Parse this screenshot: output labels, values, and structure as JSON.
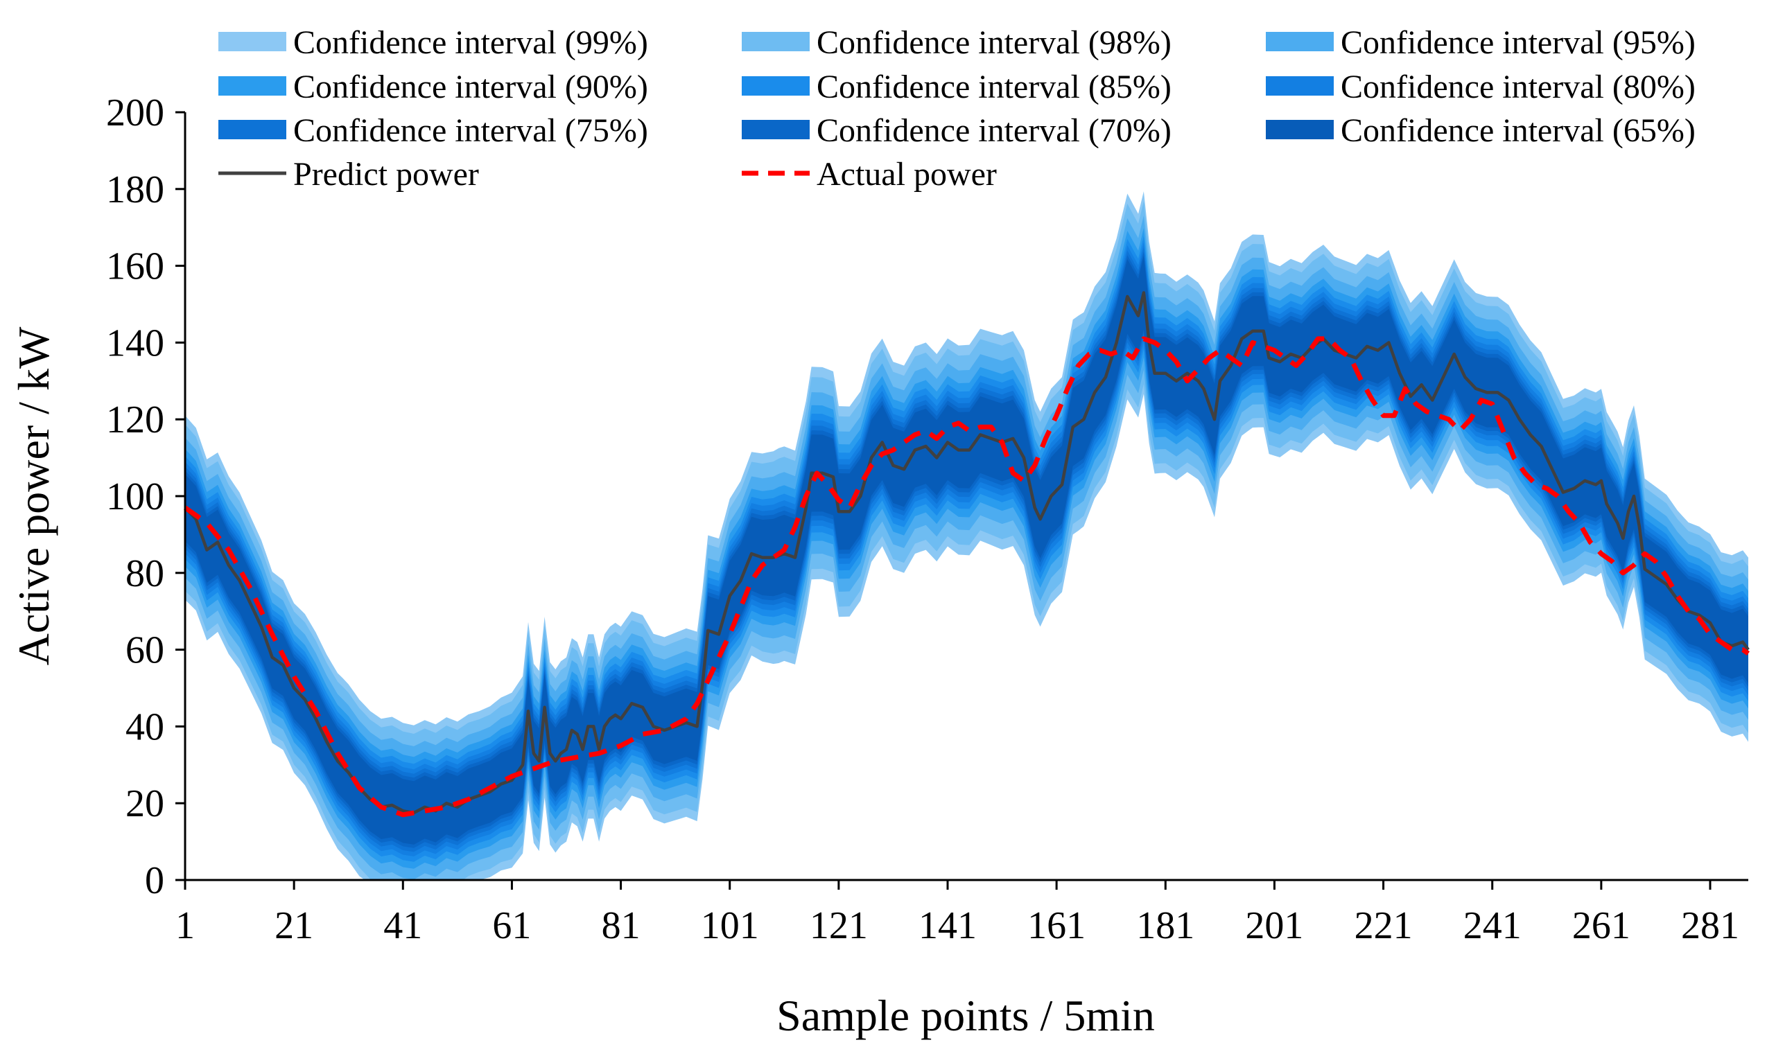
{
  "chart_data": {
    "type": "area",
    "title": "",
    "xlabel": "Sample points / 5min",
    "ylabel": "Active power / kW",
    "xlim": [
      1,
      288
    ],
    "ylim": [
      0,
      200
    ],
    "x_ticks": [
      1,
      21,
      41,
      61,
      81,
      101,
      121,
      141,
      161,
      181,
      201,
      221,
      241,
      261,
      281
    ],
    "x_tick_labels": [
      "1",
      "21",
      "41",
      "61",
      "81",
      "101",
      "121",
      "141",
      "161",
      "181",
      "201",
      "221",
      "241",
      "261",
      "281"
    ],
    "y_ticks": [
      0,
      20,
      40,
      60,
      80,
      100,
      120,
      140,
      160,
      180,
      200
    ],
    "y_tick_labels": [
      "0",
      "20",
      "40",
      "60",
      "80",
      "100",
      "120",
      "140",
      "160",
      "180",
      "200"
    ],
    "legend_position": "top",
    "confidence_bands": [
      {
        "name": "Confidence interval (99%)",
        "level": 0.99,
        "color": "#8cc8f4"
      },
      {
        "name": "Confidence interval (98%)",
        "level": 0.98,
        "color": "#6ebcf2"
      },
      {
        "name": "Confidence interval (95%)",
        "level": 0.95,
        "color": "#4cacf0"
      },
      {
        "name": "Confidence interval (90%)",
        "level": 0.9,
        "color": "#2a9cee"
      },
      {
        "name": "Confidence interval (85%)",
        "level": 0.85,
        "color": "#1a8ceb"
      },
      {
        "name": "Confidence interval (80%)",
        "level": 0.8,
        "color": "#137fe2"
      },
      {
        "name": "Confidence interval (75%)",
        "level": 0.75,
        "color": "#0e73d6"
      },
      {
        "name": "Confidence interval (70%)",
        "level": 0.7,
        "color": "#0a67c8"
      },
      {
        "name": "Confidence interval (65%)",
        "level": 0.65,
        "color": "#075cb8"
      }
    ],
    "band_half_width_99_kw": [
      {
        "x": 1,
        "w": 24
      },
      {
        "x": 20,
        "w": 22
      },
      {
        "x": 30,
        "w": 23
      },
      {
        "x": 40,
        "w": 23
      },
      {
        "x": 55,
        "w": 22
      },
      {
        "x": 70,
        "w": 24
      },
      {
        "x": 85,
        "w": 24
      },
      {
        "x": 100,
        "w": 25
      },
      {
        "x": 110,
        "w": 28
      },
      {
        "x": 130,
        "w": 27
      },
      {
        "x": 140,
        "w": 27
      },
      {
        "x": 152,
        "w": 28
      },
      {
        "x": 165,
        "w": 28
      },
      {
        "x": 180,
        "w": 26
      },
      {
        "x": 200,
        "w": 25
      },
      {
        "x": 220,
        "w": 24
      },
      {
        "x": 240,
        "w": 25
      },
      {
        "x": 260,
        "w": 24
      },
      {
        "x": 280,
        "w": 23
      },
      {
        "x": 288,
        "w": 24
      }
    ],
    "series": [
      {
        "name": "Predict power",
        "color": "#404040",
        "style": "solid",
        "points": [
          [
            1,
            97
          ],
          [
            3,
            94
          ],
          [
            5,
            86
          ],
          [
            7,
            88
          ],
          [
            9,
            82
          ],
          [
            11,
            78
          ],
          [
            13,
            72
          ],
          [
            15,
            66
          ],
          [
            17,
            58
          ],
          [
            19,
            56
          ],
          [
            21,
            50
          ],
          [
            23,
            47
          ],
          [
            25,
            42
          ],
          [
            27,
            36
          ],
          [
            29,
            31
          ],
          [
            31,
            28
          ],
          [
            33,
            24
          ],
          [
            35,
            21
          ],
          [
            37,
            19
          ],
          [
            39,
            19.5
          ],
          [
            41,
            18
          ],
          [
            43,
            17.5
          ],
          [
            45,
            19
          ],
          [
            47,
            18
          ],
          [
            49,
            20
          ],
          [
            51,
            19
          ],
          [
            53,
            21
          ],
          [
            55,
            22
          ],
          [
            57,
            23
          ],
          [
            59,
            25
          ],
          [
            61,
            26
          ],
          [
            62,
            28
          ],
          [
            63,
            30
          ],
          [
            64,
            44
          ],
          [
            65,
            33
          ],
          [
            66,
            31
          ],
          [
            67,
            45
          ],
          [
            68,
            33
          ],
          [
            69,
            31
          ],
          [
            70,
            33
          ],
          [
            71,
            34
          ],
          [
            72,
            39
          ],
          [
            73,
            38
          ],
          [
            74,
            34
          ],
          [
            75,
            40
          ],
          [
            76,
            40
          ],
          [
            77,
            34
          ],
          [
            78,
            40
          ],
          [
            79,
            42
          ],
          [
            80,
            43
          ],
          [
            81,
            42
          ],
          [
            83,
            46
          ],
          [
            85,
            45
          ],
          [
            87,
            40
          ],
          [
            89,
            39
          ],
          [
            91,
            40
          ],
          [
            93,
            41
          ],
          [
            95,
            40
          ],
          [
            96,
            51
          ],
          [
            97,
            65
          ],
          [
            99,
            64
          ],
          [
            101,
            74
          ],
          [
            103,
            78
          ],
          [
            105,
            85
          ],
          [
            107,
            84
          ],
          [
            109,
            84
          ],
          [
            111,
            85
          ],
          [
            113,
            84
          ],
          [
            115,
            97
          ],
          [
            116,
            106
          ],
          [
            118,
            106
          ],
          [
            120,
            105
          ],
          [
            121,
            96
          ],
          [
            123,
            96
          ],
          [
            125,
            100
          ],
          [
            127,
            110
          ],
          [
            129,
            114
          ],
          [
            131,
            108
          ],
          [
            133,
            107
          ],
          [
            135,
            112
          ],
          [
            137,
            113
          ],
          [
            139,
            110
          ],
          [
            141,
            114
          ],
          [
            143,
            112
          ],
          [
            145,
            112
          ],
          [
            147,
            116
          ],
          [
            149,
            115
          ],
          [
            151,
            114
          ],
          [
            153,
            115
          ],
          [
            155,
            110
          ],
          [
            157,
            97
          ],
          [
            158,
            94
          ],
          [
            160,
            100
          ],
          [
            162,
            103
          ],
          [
            164,
            118
          ],
          [
            166,
            120
          ],
          [
            168,
            127
          ],
          [
            170,
            131
          ],
          [
            172,
            140
          ],
          [
            174,
            152
          ],
          [
            176,
            147
          ],
          [
            177,
            153
          ],
          [
            178,
            140
          ],
          [
            179,
            132
          ],
          [
            181,
            132
          ],
          [
            183,
            130
          ],
          [
            185,
            132
          ],
          [
            187,
            130
          ],
          [
            188,
            128
          ],
          [
            190,
            120
          ],
          [
            191,
            130
          ],
          [
            193,
            134
          ],
          [
            195,
            141
          ],
          [
            197,
            143
          ],
          [
            199,
            143
          ],
          [
            200,
            136
          ],
          [
            202,
            135
          ],
          [
            204,
            137
          ],
          [
            206,
            136
          ],
          [
            208,
            139
          ],
          [
            210,
            141
          ],
          [
            212,
            138
          ],
          [
            214,
            137
          ],
          [
            216,
            136
          ],
          [
            218,
            139
          ],
          [
            220,
            138
          ],
          [
            222,
            140
          ],
          [
            224,
            132
          ],
          [
            226,
            126
          ],
          [
            228,
            129
          ],
          [
            230,
            125
          ],
          [
            232,
            131
          ],
          [
            234,
            137
          ],
          [
            236,
            131
          ],
          [
            238,
            128
          ],
          [
            240,
            127
          ],
          [
            242,
            127
          ],
          [
            244,
            125
          ],
          [
            246,
            120
          ],
          [
            248,
            116
          ],
          [
            250,
            113
          ],
          [
            252,
            107
          ],
          [
            254,
            101
          ],
          [
            256,
            102
          ],
          [
            258,
            104
          ],
          [
            260,
            103
          ],
          [
            261,
            104
          ],
          [
            262,
            98
          ],
          [
            264,
            93
          ],
          [
            265,
            89
          ],
          [
            266,
            96
          ],
          [
            267,
            100
          ],
          [
            268,
            92
          ],
          [
            269,
            81
          ],
          [
            271,
            79
          ],
          [
            273,
            77
          ],
          [
            275,
            73
          ],
          [
            277,
            70
          ],
          [
            279,
            69
          ],
          [
            281,
            67
          ],
          [
            283,
            62
          ],
          [
            285,
            61
          ],
          [
            287,
            62
          ],
          [
            288,
            60
          ]
        ]
      },
      {
        "name": "Actual power",
        "color": "#ff0000",
        "style": "dashed",
        "points": [
          [
            1,
            97
          ],
          [
            5,
            93
          ],
          [
            9,
            86
          ],
          [
            13,
            76
          ],
          [
            17,
            64
          ],
          [
            21,
            53
          ],
          [
            25,
            44
          ],
          [
            29,
            33
          ],
          [
            33,
            24
          ],
          [
            37,
            19
          ],
          [
            41,
            17
          ],
          [
            45,
            18
          ],
          [
            49,
            19
          ],
          [
            53,
            21
          ],
          [
            57,
            24
          ],
          [
            61,
            27
          ],
          [
            65,
            29
          ],
          [
            69,
            31
          ],
          [
            73,
            32
          ],
          [
            77,
            33
          ],
          [
            81,
            35
          ],
          [
            85,
            38
          ],
          [
            89,
            39
          ],
          [
            93,
            42
          ],
          [
            95,
            46
          ],
          [
            97,
            52
          ],
          [
            99,
            58
          ],
          [
            101,
            64
          ],
          [
            103,
            71
          ],
          [
            105,
            78
          ],
          [
            107,
            82
          ],
          [
            109,
            84
          ],
          [
            111,
            86
          ],
          [
            113,
            92
          ],
          [
            115,
            100
          ],
          [
            117,
            106
          ],
          [
            119,
            103
          ],
          [
            121,
            99
          ],
          [
            123,
            97
          ],
          [
            125,
            103
          ],
          [
            127,
            108
          ],
          [
            129,
            111
          ],
          [
            131,
            112
          ],
          [
            133,
            114
          ],
          [
            135,
            116
          ],
          [
            137,
            117
          ],
          [
            139,
            115
          ],
          [
            141,
            118
          ],
          [
            143,
            119
          ],
          [
            145,
            117
          ],
          [
            147,
            118
          ],
          [
            149,
            118
          ],
          [
            151,
            114
          ],
          [
            153,
            106
          ],
          [
            155,
            104
          ],
          [
            157,
            108
          ],
          [
            159,
            115
          ],
          [
            161,
            121
          ],
          [
            163,
            128
          ],
          [
            165,
            134
          ],
          [
            167,
            137
          ],
          [
            169,
            138
          ],
          [
            171,
            137
          ],
          [
            173,
            138
          ],
          [
            175,
            136
          ],
          [
            177,
            141
          ],
          [
            179,
            140
          ],
          [
            181,
            138
          ],
          [
            183,
            135
          ],
          [
            185,
            130
          ],
          [
            187,
            133
          ],
          [
            189,
            136
          ],
          [
            191,
            138
          ],
          [
            193,
            136
          ],
          [
            195,
            134
          ],
          [
            197,
            140
          ],
          [
            199,
            139
          ],
          [
            201,
            138
          ],
          [
            203,
            136
          ],
          [
            205,
            134
          ],
          [
            207,
            137
          ],
          [
            209,
            141
          ],
          [
            211,
            141
          ],
          [
            213,
            138
          ],
          [
            215,
            136
          ],
          [
            217,
            130
          ],
          [
            219,
            125
          ],
          [
            221,
            121
          ],
          [
            223,
            121
          ],
          [
            225,
            128
          ],
          [
            227,
            124
          ],
          [
            229,
            122
          ],
          [
            231,
            121
          ],
          [
            233,
            120
          ],
          [
            235,
            117
          ],
          [
            237,
            120
          ],
          [
            239,
            125
          ],
          [
            241,
            124
          ],
          [
            243,
            117
          ],
          [
            245,
            110
          ],
          [
            247,
            106
          ],
          [
            249,
            103
          ],
          [
            251,
            102
          ],
          [
            253,
            100
          ],
          [
            255,
            96
          ],
          [
            257,
            93
          ],
          [
            259,
            88
          ],
          [
            261,
            85
          ],
          [
            263,
            83
          ],
          [
            265,
            80
          ],
          [
            267,
            82
          ],
          [
            269,
            85
          ],
          [
            271,
            83
          ],
          [
            273,
            79
          ],
          [
            275,
            74
          ],
          [
            277,
            70
          ],
          [
            279,
            68
          ],
          [
            281,
            64
          ],
          [
            283,
            62
          ],
          [
            285,
            60
          ],
          [
            287,
            60
          ],
          [
            288,
            59
          ]
        ]
      }
    ]
  }
}
